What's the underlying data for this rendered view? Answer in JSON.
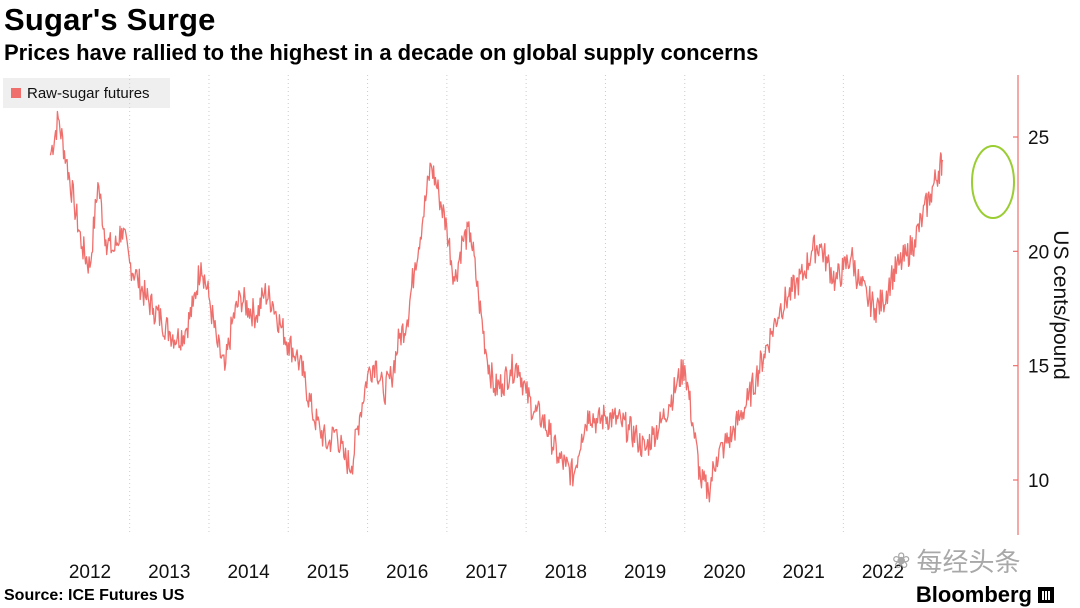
{
  "header": {
    "title": "Sugar's Surge",
    "subtitle": "Prices have rallied to the highest in a decade on global supply concerns"
  },
  "footer": {
    "source": "Source: ICE Futures US",
    "brand": "Bloomberg",
    "watermark": "每经头条"
  },
  "colors": {
    "series": "#ef6f6c",
    "highlight_ring": "#9acd32",
    "axis": "#ef6f6c",
    "grid": "#cccccc"
  },
  "chart_data": {
    "type": "line",
    "title": "Sugar's Surge",
    "subtitle": "Prices have rallied to the highest in a decade on global supply concerns",
    "xlabel": "",
    "ylabel": "US cents/pound",
    "x_ticks": [
      "2012",
      "2013",
      "2014",
      "2015",
      "2016",
      "2017",
      "2018",
      "2019",
      "2020",
      "2021",
      "2022"
    ],
    "y_ticks": [
      10,
      15,
      20,
      25
    ],
    "ylim": [
      7.8,
      27.5
    ],
    "y_axis_side": "right",
    "grid": "vertical dotted lines at year boundaries",
    "legend": {
      "position": "top-left",
      "entries": [
        "Raw-sugar futures"
      ]
    },
    "annotation": "circle around latest peak (~24 cents)",
    "series": [
      {
        "name": "Raw-sugar futures",
        "x": [
          2011.5,
          2011.6,
          2011.7,
          2011.8,
          2011.9,
          2012.0,
          2012.1,
          2012.2,
          2012.3,
          2012.4,
          2012.5,
          2012.6,
          2012.7,
          2012.8,
          2012.9,
          2013.0,
          2013.1,
          2013.2,
          2013.3,
          2013.4,
          2013.5,
          2013.6,
          2013.7,
          2013.8,
          2013.9,
          2014.0,
          2014.1,
          2014.2,
          2014.3,
          2014.4,
          2014.5,
          2014.6,
          2014.7,
          2014.8,
          2014.9,
          2015.0,
          2015.1,
          2015.2,
          2015.3,
          2015.4,
          2015.5,
          2015.6,
          2015.7,
          2015.8,
          2015.9,
          2016.0,
          2016.1,
          2016.2,
          2016.3,
          2016.4,
          2016.5,
          2016.6,
          2016.7,
          2016.8,
          2016.9,
          2017.0,
          2017.1,
          2017.2,
          2017.3,
          2017.4,
          2017.5,
          2017.6,
          2017.7,
          2017.8,
          2017.9,
          2018.0,
          2018.1,
          2018.2,
          2018.3,
          2018.4,
          2018.5,
          2018.6,
          2018.7,
          2018.8,
          2018.9,
          2019.0,
          2019.1,
          2019.2,
          2019.3,
          2019.4,
          2019.5,
          2019.6,
          2019.7,
          2019.8,
          2019.9,
          2020.0,
          2020.1,
          2020.2,
          2020.3,
          2020.4,
          2020.5,
          2020.6,
          2020.7,
          2020.8,
          2020.9,
          2021.0,
          2021.1,
          2021.2,
          2021.3,
          2021.4,
          2021.5,
          2021.6,
          2021.7,
          2021.8,
          2021.9,
          2022.0,
          2022.1,
          2022.2,
          2022.3,
          2022.4,
          2022.5,
          2022.6,
          2022.7,
          2022.75
        ],
        "y": [
          24.2,
          25.8,
          24.0,
          22.1,
          20.2,
          19.3,
          23.0,
          20.5,
          20.0,
          21.0,
          19.5,
          18.8,
          18.0,
          17.5,
          17.0,
          16.5,
          16.2,
          16.5,
          17.6,
          19.5,
          18.0,
          16.0,
          14.8,
          17.0,
          18.0,
          17.5,
          17.2,
          18.2,
          17.8,
          16.8,
          16.0,
          15.5,
          14.5,
          13.0,
          12.2,
          11.5,
          12.2,
          11.0,
          10.6,
          12.8,
          14.6,
          15.2,
          13.8,
          14.5,
          16.2,
          17.0,
          19.5,
          21.5,
          23.8,
          22.5,
          21.0,
          18.7,
          20.5,
          20.8,
          18.0,
          15.5,
          14.0,
          14.2,
          14.8,
          15.0,
          13.8,
          13.0,
          12.7,
          12.0,
          11.0,
          10.6,
          10.2,
          12.0,
          13.0,
          12.5,
          12.8,
          12.7,
          12.5,
          12.2,
          11.8,
          11.3,
          12.0,
          12.5,
          13.3,
          14.2,
          15.0,
          12.5,
          10.0,
          9.5,
          11.0,
          11.5,
          12.0,
          12.8,
          13.5,
          14.5,
          15.5,
          16.5,
          17.5,
          18.0,
          18.5,
          19.0,
          20.0,
          20.3,
          19.5,
          18.7,
          19.2,
          19.8,
          18.6,
          18.0,
          17.5,
          17.8,
          18.8,
          19.4,
          19.8,
          20.5,
          21.5,
          22.5,
          23.5,
          24.0
        ]
      }
    ]
  }
}
